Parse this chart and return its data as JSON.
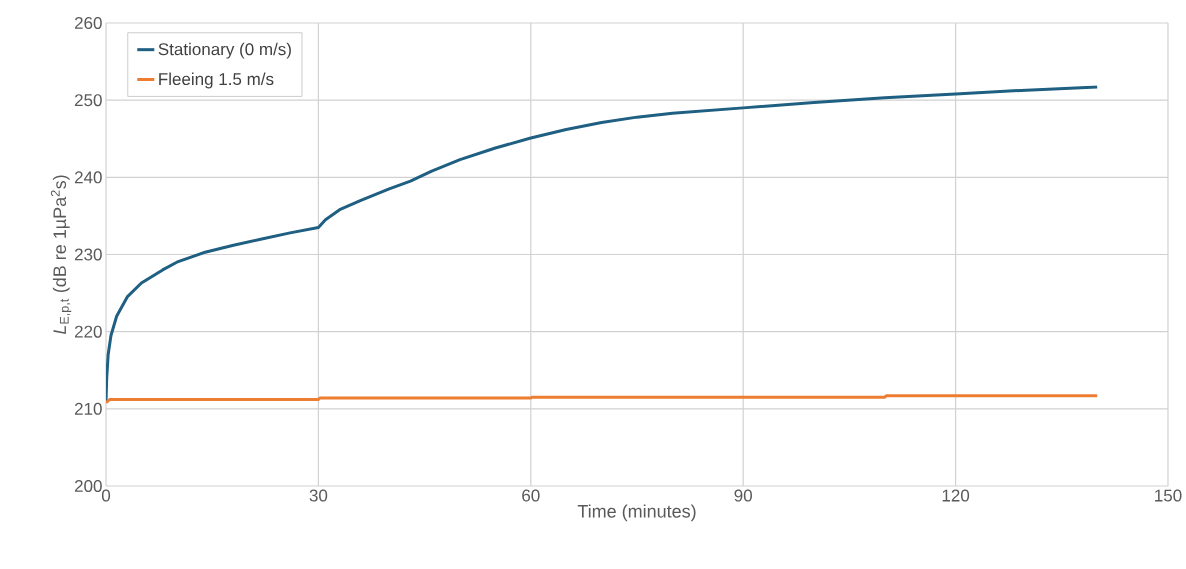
{
  "chart_data": {
    "type": "line",
    "xlabel": "Time (minutes)",
    "ylabel": "*L*$_{E,p,t}$ (dB re 1µPa$^{2}$s)",
    "xlim": [
      0,
      150
    ],
    "xticks": [
      0,
      30,
      60,
      90,
      120,
      150
    ],
    "ylim": [
      200,
      260
    ],
    "yticks": [
      200,
      210,
      220,
      230,
      240,
      250,
      260
    ],
    "grid": true,
    "legend": "top left",
    "marker": "none",
    "line_style": "solid",
    "series": [
      {
        "name": "Stationary (0 m/s)",
        "color": "#1f5f82",
        "x": [
          0,
          0.1,
          0.3,
          0.7,
          1.5,
          3,
          5,
          8,
          10,
          14,
          18,
          22,
          26,
          30,
          31,
          33,
          36,
          40,
          43,
          46,
          50,
          55,
          60,
          65,
          70,
          75,
          80,
          90,
          100,
          110,
          120,
          130,
          140
        ],
        "values": [
          211,
          214,
          217,
          219.5,
          222,
          224.5,
          226.3,
          228,
          229,
          230.3,
          231.2,
          232,
          232.8,
          233.5,
          234.5,
          235.8,
          237,
          238.5,
          239.5,
          240.8,
          242.3,
          243.8,
          245.1,
          246.2,
          247.1,
          247.8,
          248.3,
          249,
          249.7,
          250.3,
          250.8,
          251.3,
          251.7
        ]
      },
      {
        "name": "Fleeing 1.5 m/s",
        "color": "#ed7d31",
        "x": [
          0,
          0.5,
          30,
          30.2,
          60,
          60.2,
          110,
          110.2,
          140
        ],
        "values": [
          210.8,
          211.2,
          211.2,
          211.4,
          211.4,
          211.5,
          211.5,
          211.7,
          211.7
        ]
      }
    ]
  }
}
